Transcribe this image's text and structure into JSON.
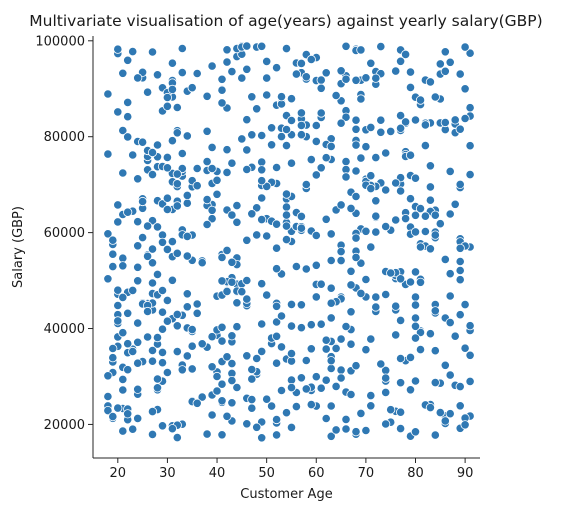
{
  "chart_data": {
    "type": "scatter",
    "title": "Multivariate visualisation of age(years) against yearly salary(GBP)",
    "xlabel": "Customer Age",
    "ylabel": "Salary (GBP)",
    "xlim": [
      15,
      93
    ],
    "ylim": [
      13000,
      101000
    ],
    "x_ticks": [
      20,
      30,
      40,
      50,
      60,
      70,
      80,
      90
    ],
    "y_ticks": [
      20000,
      40000,
      60000,
      80000,
      100000
    ],
    "y_tick_labels": [
      "20000",
      "40000",
      "60000",
      "80000",
      "100000"
    ],
    "grid": false,
    "legend": "none",
    "point_color": "#2f78b3",
    "point_count": 800,
    "x_range_of_points": [
      18,
      91
    ],
    "y_range_of_points": [
      17000,
      99000
    ]
  }
}
